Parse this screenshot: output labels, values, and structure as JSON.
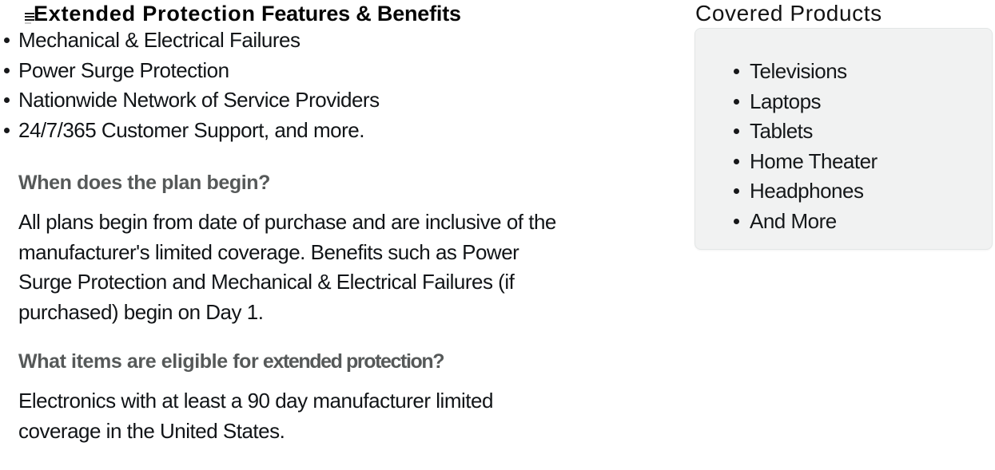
{
  "left_section": {
    "title": {
      "part1": "Extended Protection",
      "part2": " Features & Benefits"
    },
    "benefits": [
      "Mechanical & Electrical Failures",
      "Power Surge Protection",
      "Nationwide Network of Service Providers",
      "24/7/365 Customer Support, and more."
    ],
    "faq": [
      {
        "question": "When does the plan begin?",
        "answer_lines": [
          "All plans begin from date of purchase and are inclusive of the",
          "manufacturer's limited coverage. Benefits such as Power",
          "Surge Protection and Mechanical & Electrical Failures (if",
          "purchased) begin on Day 1."
        ]
      },
      {
        "question_part1": "What items are eligible for",
        "question_part2": " extended protection?",
        "answer_lines": [
          "Electronics with at least a 90 day manufacturer limited",
          "coverage in the United States."
        ]
      }
    ]
  },
  "right_section": {
    "title": "Covered Products",
    "products": [
      "Televisions",
      "Laptops",
      "Tablets",
      "Home Theater",
      "Headphones",
      "And More"
    ]
  },
  "colors": {
    "body_text": "#0f1111",
    "question_gray": "#565959",
    "box_background": "#f1f2f2",
    "box_border": "#e3e6e6",
    "bullet": "#17181a"
  }
}
